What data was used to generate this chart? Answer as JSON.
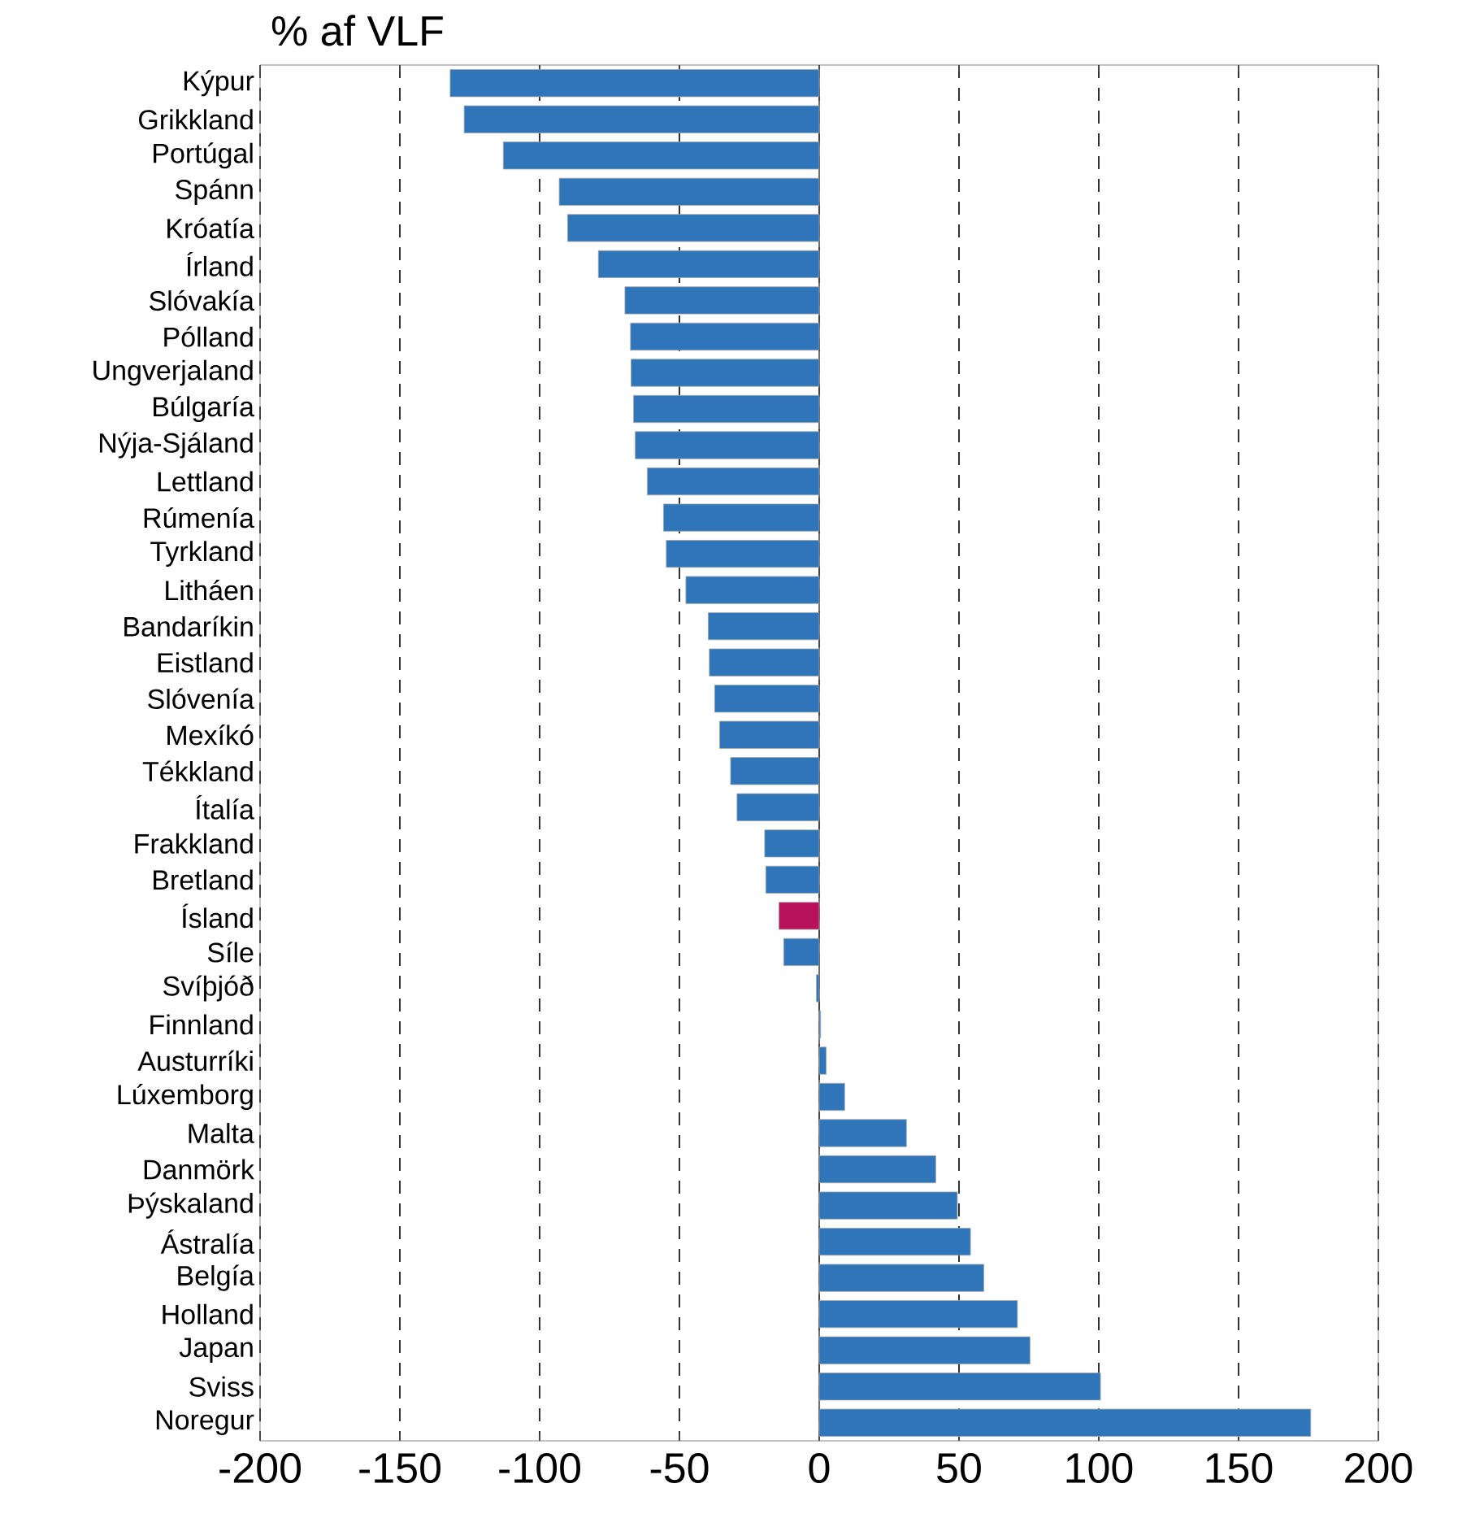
{
  "chart_data": {
    "type": "bar",
    "orientation": "horizontal",
    "title": "% af VLF",
    "categories": [
      "Kýpur",
      "Grikkland",
      "Portúgal",
      "Spánn",
      "Króatía",
      "Írland",
      "Slóvakía",
      "Pólland",
      "Ungverjaland",
      "Búlgaría",
      "Nýja-Sjáland",
      "Lettland",
      "Rúmenía",
      "Tyrkland",
      "Litháen",
      "Bandaríkin",
      "Eistland",
      "Slóvenía",
      "Mexíkó",
      "Tékkland",
      "Ítalía",
      "Frakkland",
      "Bretland",
      "Ísland",
      "Síle",
      "Svíþjóð",
      "Finnland",
      "Austurríki",
      "Lúxemborg",
      "Malta",
      "Danmörk",
      "Þýskaland",
      "Ástralía",
      "Belgía",
      "Holland",
      "Japan",
      "Sviss",
      "Noregur"
    ],
    "values": [
      -132,
      -127,
      -113,
      -93,
      -90,
      -79,
      -69.5,
      -67.5,
      -67.3,
      -66.4,
      -65.8,
      -61.5,
      -55.7,
      -54.7,
      -47.7,
      -39.7,
      -39.3,
      -37.4,
      -35.6,
      -31.7,
      -29.4,
      -19.5,
      -19.1,
      -14.4,
      -12.7,
      -1,
      0.5,
      2.5,
      9.1,
      31.2,
      41.7,
      49.4,
      54.1,
      58.9,
      70.9,
      75.4,
      100.6,
      175.8
    ],
    "colors": [
      "#2e75b9",
      "#2e75b9",
      "#2e75b9",
      "#2e75b9",
      "#2e75b9",
      "#2e75b9",
      "#2e75b9",
      "#2e75b9",
      "#2e75b9",
      "#2e75b9",
      "#2e75b9",
      "#2e75b9",
      "#2e75b9",
      "#2e75b9",
      "#2e75b9",
      "#2e75b9",
      "#2e75b9",
      "#2e75b9",
      "#2e75b9",
      "#2e75b9",
      "#2e75b9",
      "#2e75b9",
      "#2e75b9",
      "#b8125c",
      "#2e75b9",
      "#2e75b9",
      "#2e75b9",
      "#2e75b9",
      "#2e75b9",
      "#2e75b9",
      "#2e75b9",
      "#2e75b9",
      "#2e75b9",
      "#2e75b9",
      "#2e75b9",
      "#2e75b9",
      "#2e75b9",
      "#2e75b9"
    ],
    "xlim": [
      -200,
      200
    ],
    "xticks": [
      -200,
      -150,
      -100,
      -50,
      0,
      50,
      100,
      150,
      200
    ],
    "grid": "x"
  }
}
